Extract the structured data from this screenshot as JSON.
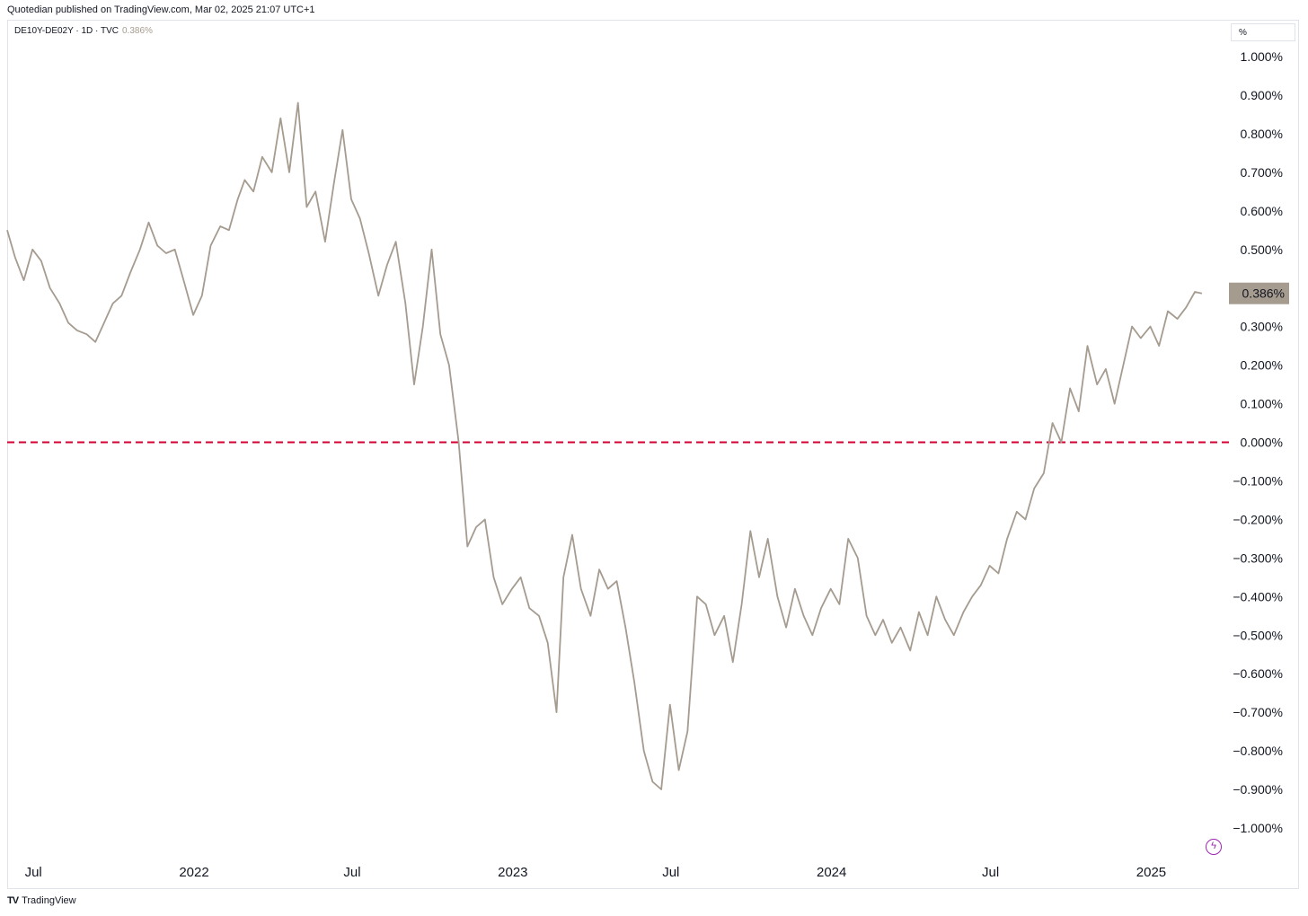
{
  "header": {
    "published": "Quotedian published on TradingView.com, Mar 02, 2025 21:07 UTC+1",
    "symbol": "DE10Y-DE02Y · 1D · TVC",
    "last_value": "0.386%",
    "unit": "%"
  },
  "footer": {
    "brand": "TradingView",
    "logo": "tradingview-logo-icon"
  },
  "colors": {
    "line": "#a59b8f",
    "zero_line": "#d50032",
    "badge": "#a59b8f",
    "axis_text": "#131722"
  },
  "chart_data": {
    "type": "line",
    "series": [
      {
        "name": "DE10Y-DE02Y",
        "points": [
          [
            "2021-06-01",
            0.55
          ],
          [
            "2021-06-10",
            0.48
          ],
          [
            "2021-06-20",
            0.42
          ],
          [
            "2021-06-30",
            0.5
          ],
          [
            "2021-07-10",
            0.47
          ],
          [
            "2021-07-20",
            0.4
          ],
          [
            "2021-07-31",
            0.36
          ],
          [
            "2021-08-10",
            0.31
          ],
          [
            "2021-08-20",
            0.29
          ],
          [
            "2021-08-31",
            0.28
          ],
          [
            "2021-09-10",
            0.26
          ],
          [
            "2021-09-20",
            0.31
          ],
          [
            "2021-09-30",
            0.36
          ],
          [
            "2021-10-10",
            0.38
          ],
          [
            "2021-10-20",
            0.44
          ],
          [
            "2021-10-31",
            0.5
          ],
          [
            "2021-11-10",
            0.57
          ],
          [
            "2021-11-20",
            0.51
          ],
          [
            "2021-11-30",
            0.49
          ],
          [
            "2021-12-10",
            0.5
          ],
          [
            "2021-12-20",
            0.42
          ],
          [
            "2021-12-31",
            0.33
          ],
          [
            "2022-01-10",
            0.38
          ],
          [
            "2022-01-20",
            0.51
          ],
          [
            "2022-01-31",
            0.56
          ],
          [
            "2022-02-10",
            0.55
          ],
          [
            "2022-02-20",
            0.63
          ],
          [
            "2022-02-28",
            0.68
          ],
          [
            "2022-03-10",
            0.65
          ],
          [
            "2022-03-20",
            0.74
          ],
          [
            "2022-03-31",
            0.7
          ],
          [
            "2022-04-10",
            0.84
          ],
          [
            "2022-04-20",
            0.7
          ],
          [
            "2022-04-30",
            0.88
          ],
          [
            "2022-05-10",
            0.61
          ],
          [
            "2022-05-20",
            0.65
          ],
          [
            "2022-05-31",
            0.52
          ],
          [
            "2022-06-10",
            0.67
          ],
          [
            "2022-06-20",
            0.81
          ],
          [
            "2022-06-30",
            0.63
          ],
          [
            "2022-07-10",
            0.58
          ],
          [
            "2022-07-20",
            0.49
          ],
          [
            "2022-07-31",
            0.38
          ],
          [
            "2022-08-10",
            0.46
          ],
          [
            "2022-08-20",
            0.52
          ],
          [
            "2022-08-31",
            0.36
          ],
          [
            "2022-09-10",
            0.15
          ],
          [
            "2022-09-20",
            0.3
          ],
          [
            "2022-09-30",
            0.5
          ],
          [
            "2022-10-10",
            0.28
          ],
          [
            "2022-10-20",
            0.2
          ],
          [
            "2022-10-31",
            0.0
          ],
          [
            "2022-11-10",
            -0.27
          ],
          [
            "2022-11-20",
            -0.22
          ],
          [
            "2022-11-30",
            -0.2
          ],
          [
            "2022-12-10",
            -0.35
          ],
          [
            "2022-12-20",
            -0.42
          ],
          [
            "2022-12-31",
            -0.38
          ],
          [
            "2023-01-10",
            -0.35
          ],
          [
            "2023-01-20",
            -0.43
          ],
          [
            "2023-01-31",
            -0.45
          ],
          [
            "2023-02-10",
            -0.52
          ],
          [
            "2023-02-20",
            -0.7
          ],
          [
            "2023-02-28",
            -0.35
          ],
          [
            "2023-03-10",
            -0.24
          ],
          [
            "2023-03-20",
            -0.38
          ],
          [
            "2023-03-31",
            -0.45
          ],
          [
            "2023-04-10",
            -0.33
          ],
          [
            "2023-04-20",
            -0.38
          ],
          [
            "2023-04-30",
            -0.36
          ],
          [
            "2023-05-10",
            -0.48
          ],
          [
            "2023-05-20",
            -0.62
          ],
          [
            "2023-05-31",
            -0.8
          ],
          [
            "2023-06-10",
            -0.88
          ],
          [
            "2023-06-20",
            -0.9
          ],
          [
            "2023-06-30",
            -0.68
          ],
          [
            "2023-07-10",
            -0.85
          ],
          [
            "2023-07-20",
            -0.75
          ],
          [
            "2023-07-31",
            -0.4
          ],
          [
            "2023-08-10",
            -0.42
          ],
          [
            "2023-08-20",
            -0.5
          ],
          [
            "2023-08-31",
            -0.45
          ],
          [
            "2023-09-10",
            -0.57
          ],
          [
            "2023-09-20",
            -0.42
          ],
          [
            "2023-09-30",
            -0.23
          ],
          [
            "2023-10-10",
            -0.35
          ],
          [
            "2023-10-20",
            -0.25
          ],
          [
            "2023-10-31",
            -0.4
          ],
          [
            "2023-11-10",
            -0.48
          ],
          [
            "2023-11-20",
            -0.38
          ],
          [
            "2023-11-30",
            -0.45
          ],
          [
            "2023-12-10",
            -0.5
          ],
          [
            "2023-12-20",
            -0.43
          ],
          [
            "2023-12-31",
            -0.38
          ],
          [
            "2024-01-10",
            -0.42
          ],
          [
            "2024-01-20",
            -0.25
          ],
          [
            "2024-01-31",
            -0.3
          ],
          [
            "2024-02-10",
            -0.45
          ],
          [
            "2024-02-20",
            -0.5
          ],
          [
            "2024-02-29",
            -0.46
          ],
          [
            "2024-03-10",
            -0.52
          ],
          [
            "2024-03-20",
            -0.48
          ],
          [
            "2024-03-31",
            -0.54
          ],
          [
            "2024-04-10",
            -0.44
          ],
          [
            "2024-04-20",
            -0.5
          ],
          [
            "2024-04-30",
            -0.4
          ],
          [
            "2024-05-10",
            -0.46
          ],
          [
            "2024-05-20",
            -0.5
          ],
          [
            "2024-05-31",
            -0.44
          ],
          [
            "2024-06-10",
            -0.4
          ],
          [
            "2024-06-20",
            -0.37
          ],
          [
            "2024-06-30",
            -0.32
          ],
          [
            "2024-07-10",
            -0.34
          ],
          [
            "2024-07-20",
            -0.25
          ],
          [
            "2024-07-31",
            -0.18
          ],
          [
            "2024-08-10",
            -0.2
          ],
          [
            "2024-08-20",
            -0.12
          ],
          [
            "2024-08-31",
            -0.08
          ],
          [
            "2024-09-10",
            0.05
          ],
          [
            "2024-09-20",
            0.0
          ],
          [
            "2024-09-30",
            0.14
          ],
          [
            "2024-10-10",
            0.08
          ],
          [
            "2024-10-20",
            0.25
          ],
          [
            "2024-10-31",
            0.15
          ],
          [
            "2024-11-10",
            0.19
          ],
          [
            "2024-11-20",
            0.1
          ],
          [
            "2024-11-30",
            0.2
          ],
          [
            "2024-12-10",
            0.3
          ],
          [
            "2024-12-20",
            0.27
          ],
          [
            "2024-12-31",
            0.3
          ],
          [
            "2025-01-10",
            0.25
          ],
          [
            "2025-01-20",
            0.34
          ],
          [
            "2025-01-31",
            0.32
          ],
          [
            "2025-02-10",
            0.35
          ],
          [
            "2025-02-20",
            0.39
          ],
          [
            "2025-02-28",
            0.386
          ]
        ]
      }
    ],
    "x_ticks": [
      {
        "date": "2021-07-01",
        "label": "Jul"
      },
      {
        "date": "2022-01-01",
        "label": "2022"
      },
      {
        "date": "2022-07-01",
        "label": "Jul"
      },
      {
        "date": "2023-01-01",
        "label": "2023"
      },
      {
        "date": "2023-07-01",
        "label": "Jul"
      },
      {
        "date": "2024-01-01",
        "label": "2024"
      },
      {
        "date": "2024-07-01",
        "label": "Jul"
      },
      {
        "date": "2025-01-01",
        "label": "2025"
      }
    ],
    "y_ticks": [
      "1.000%",
      "0.900%",
      "0.800%",
      "0.700%",
      "0.600%",
      "0.500%",
      "0.300%",
      "0.200%",
      "0.100%",
      "0.000%",
      "−0.100%",
      "−0.200%",
      "−0.300%",
      "−0.400%",
      "−0.500%",
      "−0.600%",
      "−0.700%",
      "−0.800%",
      "−0.900%",
      "−1.000%"
    ],
    "y_tick_values": [
      1.0,
      0.9,
      0.8,
      0.7,
      0.6,
      0.5,
      0.3,
      0.2,
      0.1,
      0.0,
      -0.1,
      -0.2,
      -0.3,
      -0.4,
      -0.5,
      -0.6,
      -0.7,
      -0.8,
      -0.9,
      -1.0
    ],
    "ylim": [
      -1.0,
      1.0
    ],
    "xlim": [
      "2021-06-01",
      "2025-03-31"
    ],
    "reference_line": {
      "value": 0.0,
      "style": "dashed"
    },
    "last_value_badge": {
      "value": 0.386,
      "label": "0.386%"
    },
    "grid": false
  }
}
